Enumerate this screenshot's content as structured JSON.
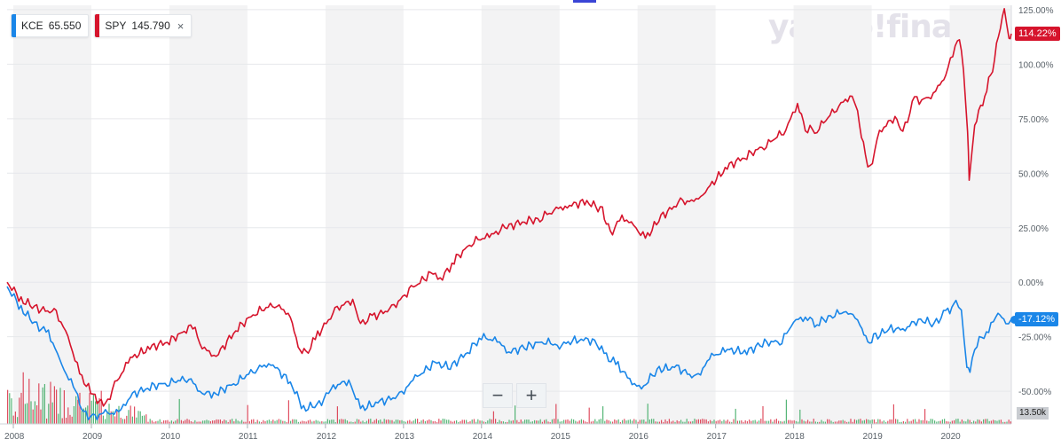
{
  "top_marker": "",
  "logo_text": "yahoo!finance",
  "legend": [
    {
      "symbol": "KCE",
      "price": "65.550",
      "color": "#1a86e8",
      "closable": false
    },
    {
      "symbol": "SPY",
      "price": "145.790",
      "color": "#d6142c",
      "closable": true,
      "close_icon": "×"
    }
  ],
  "zoom": {
    "minus": "−",
    "plus": "+"
  },
  "volume_label": "13.50k",
  "chart_data": {
    "type": "line",
    "title": "",
    "xlabel": "",
    "ylabel": "",
    "ylim": [
      -65,
      127
    ],
    "x_start": 2007.92,
    "x_end": 2020.79,
    "x_ticks": [
      "2008",
      "2009",
      "2010",
      "2011",
      "2012",
      "2013",
      "2014",
      "2015",
      "2016",
      "2017",
      "2018",
      "2019",
      "2020"
    ],
    "y_ticks": [
      "125.00%",
      "100.00%",
      "75.00%",
      "50.00%",
      "25.00%",
      "0.00%",
      "-25.00%",
      "-50.00%"
    ],
    "y_tick_values": [
      125,
      100,
      75,
      50,
      25,
      0,
      -25,
      -50
    ],
    "grid": "vertical year bands",
    "legend_position": "top-left",
    "series": [
      {
        "name": "SPY",
        "color": "#d6142c",
        "last_label": "114.22%",
        "points": [
          [
            2007.92,
            0
          ],
          [
            2008.1,
            -8
          ],
          [
            2008.3,
            -12
          ],
          [
            2008.55,
            -14
          ],
          [
            2008.7,
            -25
          ],
          [
            2008.85,
            -42
          ],
          [
            2009.02,
            -52
          ],
          [
            2009.18,
            -57
          ],
          [
            2009.3,
            -47
          ],
          [
            2009.5,
            -35
          ],
          [
            2009.75,
            -30
          ],
          [
            2010.0,
            -27
          ],
          [
            2010.3,
            -20
          ],
          [
            2010.42,
            -30
          ],
          [
            2010.6,
            -34
          ],
          [
            2010.85,
            -22
          ],
          [
            2011.1,
            -14
          ],
          [
            2011.35,
            -10
          ],
          [
            2011.55,
            -15
          ],
          [
            2011.65,
            -30
          ],
          [
            2011.75,
            -33
          ],
          [
            2011.9,
            -24
          ],
          [
            2012.15,
            -12
          ],
          [
            2012.35,
            -8
          ],
          [
            2012.45,
            -19
          ],
          [
            2012.6,
            -16
          ],
          [
            2012.85,
            -12
          ],
          [
            2013.1,
            -3
          ],
          [
            2013.35,
            4
          ],
          [
            2013.5,
            2
          ],
          [
            2013.65,
            10
          ],
          [
            2013.9,
            19
          ],
          [
            2014.1,
            21
          ],
          [
            2014.3,
            25
          ],
          [
            2014.55,
            28
          ],
          [
            2014.75,
            29
          ],
          [
            2014.9,
            33
          ],
          [
            2015.1,
            35
          ],
          [
            2015.35,
            37
          ],
          [
            2015.55,
            33
          ],
          [
            2015.65,
            22
          ],
          [
            2015.8,
            30
          ],
          [
            2015.95,
            26
          ],
          [
            2016.1,
            20
          ],
          [
            2016.3,
            30
          ],
          [
            2016.55,
            37
          ],
          [
            2016.75,
            37
          ],
          [
            2016.9,
            43
          ],
          [
            2017.15,
            53
          ],
          [
            2017.4,
            58
          ],
          [
            2017.65,
            63
          ],
          [
            2017.9,
            70
          ],
          [
            2018.05,
            82
          ],
          [
            2018.15,
            70
          ],
          [
            2018.3,
            70
          ],
          [
            2018.55,
            80
          ],
          [
            2018.75,
            86
          ],
          [
            2018.82,
            78
          ],
          [
            2018.92,
            57
          ],
          [
            2018.98,
            52
          ],
          [
            2019.1,
            69
          ],
          [
            2019.3,
            76
          ],
          [
            2019.4,
            69
          ],
          [
            2019.55,
            84
          ],
          [
            2019.7,
            83
          ],
          [
            2019.85,
            89
          ],
          [
            2019.95,
            95
          ],
          [
            2020.1,
            112
          ],
          [
            2020.15,
            108
          ],
          [
            2020.23,
            70
          ],
          [
            2020.25,
            47
          ],
          [
            2020.32,
            72
          ],
          [
            2020.45,
            86
          ],
          [
            2020.55,
            98
          ],
          [
            2020.65,
            118
          ],
          [
            2020.7,
            126
          ],
          [
            2020.76,
            111
          ],
          [
            2020.79,
            114
          ]
        ]
      },
      {
        "name": "KCE",
        "color": "#1a86e8",
        "last_label": "-17.12%",
        "points": [
          [
            2007.92,
            -2
          ],
          [
            2008.1,
            -12
          ],
          [
            2008.3,
            -20
          ],
          [
            2008.45,
            -23
          ],
          [
            2008.62,
            -38
          ],
          [
            2008.8,
            -50
          ],
          [
            2008.9,
            -60
          ],
          [
            2009.02,
            -62
          ],
          [
            2009.18,
            -60
          ],
          [
            2009.35,
            -60
          ],
          [
            2009.5,
            -52
          ],
          [
            2009.75,
            -48
          ],
          [
            2010.0,
            -46
          ],
          [
            2010.25,
            -44
          ],
          [
            2010.42,
            -51
          ],
          [
            2010.6,
            -51
          ],
          [
            2010.85,
            -46
          ],
          [
            2011.1,
            -40
          ],
          [
            2011.3,
            -37
          ],
          [
            2011.55,
            -46
          ],
          [
            2011.72,
            -58
          ],
          [
            2011.92,
            -56
          ],
          [
            2012.1,
            -48
          ],
          [
            2012.3,
            -45
          ],
          [
            2012.45,
            -58
          ],
          [
            2012.7,
            -55
          ],
          [
            2012.95,
            -52
          ],
          [
            2013.15,
            -44
          ],
          [
            2013.4,
            -37
          ],
          [
            2013.6,
            -39
          ],
          [
            2013.85,
            -31
          ],
          [
            2014.0,
            -25
          ],
          [
            2014.2,
            -27
          ],
          [
            2014.35,
            -32
          ],
          [
            2014.55,
            -30
          ],
          [
            2014.8,
            -27
          ],
          [
            2015.0,
            -29
          ],
          [
            2015.25,
            -26
          ],
          [
            2015.45,
            -27
          ],
          [
            2015.6,
            -34
          ],
          [
            2015.75,
            -38
          ],
          [
            2015.9,
            -45
          ],
          [
            2016.05,
            -49
          ],
          [
            2016.25,
            -40
          ],
          [
            2016.5,
            -39
          ],
          [
            2016.75,
            -44
          ],
          [
            2016.95,
            -34
          ],
          [
            2017.15,
            -31
          ],
          [
            2017.4,
            -32
          ],
          [
            2017.6,
            -28
          ],
          [
            2017.85,
            -27
          ],
          [
            2018.0,
            -18
          ],
          [
            2018.15,
            -16
          ],
          [
            2018.3,
            -19
          ],
          [
            2018.5,
            -15
          ],
          [
            2018.7,
            -13
          ],
          [
            2018.85,
            -19
          ],
          [
            2018.95,
            -28
          ],
          [
            2019.05,
            -25
          ],
          [
            2019.25,
            -21
          ],
          [
            2019.4,
            -22
          ],
          [
            2019.6,
            -17
          ],
          [
            2019.8,
            -19
          ],
          [
            2019.95,
            -14
          ],
          [
            2020.08,
            -10
          ],
          [
            2020.15,
            -14
          ],
          [
            2020.22,
            -39
          ],
          [
            2020.26,
            -40
          ],
          [
            2020.35,
            -28
          ],
          [
            2020.5,
            -22
          ],
          [
            2020.62,
            -14
          ],
          [
            2020.72,
            -19
          ],
          [
            2020.79,
            -17
          ]
        ]
      }
    ]
  }
}
